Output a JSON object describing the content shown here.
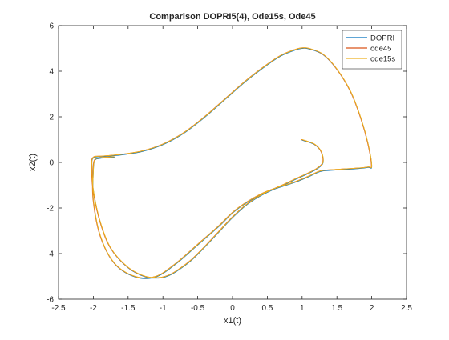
{
  "chart_data": {
    "type": "line",
    "title": "Comparison DOPRI5(4), Ode15s, Ode45",
    "xlabel": "x1(t)",
    "ylabel": "x2(t)",
    "xlim": [
      -2.5,
      2.5
    ],
    "ylim": [
      -6,
      6
    ],
    "xticks": [
      "-2.5",
      "-2",
      "-1.5",
      "-1",
      "-0.5",
      "0",
      "0.5",
      "1",
      "1.5",
      "2",
      "2.5"
    ],
    "yticks": [
      "-6",
      "-4",
      "-2",
      "0",
      "2",
      "4",
      "6"
    ],
    "grid": false,
    "legend_position": "top-right",
    "series": [
      {
        "name": "DOPRI",
        "color": "#0072BD"
      },
      {
        "name": "ode45",
        "color": "#D95319"
      },
      {
        "name": "ode15s",
        "color": "#EDB120"
      }
    ],
    "trajectory": {
      "x": [
        1.0,
        1.18,
        1.28,
        1.3,
        1.22,
        1.1,
        0.92,
        0.75,
        0.6,
        0.4,
        0.2,
        0.0,
        -0.2,
        -0.4,
        -0.6,
        -0.8,
        -0.92,
        -1.05,
        -1.25,
        -1.5,
        -1.75,
        -1.9,
        -2.0,
        -2.02,
        -2.0,
        -1.85,
        -1.6,
        -1.3,
        -1.0,
        -0.7,
        -0.4,
        -0.1,
        0.2,
        0.5,
        0.7,
        0.9,
        1.0,
        1.1,
        1.3,
        1.5,
        1.7,
        1.85,
        1.95,
        2.0,
        1.95,
        1.8,
        1.55,
        1.3,
        1.2,
        1.1,
        0.9,
        0.6,
        0.4,
        0.2,
        0.0,
        -0.2,
        -0.5,
        -0.8,
        -1.1,
        -1.4,
        -1.7,
        -1.9,
        -2.0,
        -2.0,
        -1.98,
        -1.9,
        -1.7
      ],
      "y": [
        1.0,
        0.8,
        0.45,
        0.0,
        -0.25,
        -0.45,
        -0.7,
        -0.95,
        -1.15,
        -1.45,
        -1.85,
        -2.4,
        -3.05,
        -3.7,
        -4.3,
        -4.75,
        -4.95,
        -5.05,
        -5.0,
        -4.6,
        -3.75,
        -2.6,
        -1.2,
        -0.2,
        0.22,
        0.28,
        0.35,
        0.5,
        0.8,
        1.3,
        2.0,
        2.8,
        3.6,
        4.3,
        4.7,
        4.95,
        5.02,
        5.0,
        4.75,
        4.1,
        3.1,
        1.9,
        0.8,
        -0.15,
        -0.2,
        -0.25,
        -0.3,
        -0.35,
        -0.45,
        -0.6,
        -0.85,
        -1.15,
        -1.4,
        -1.75,
        -2.2,
        -2.8,
        -3.6,
        -4.4,
        -5.0,
        -5.0,
        -4.4,
        -3.2,
        -1.6,
        -0.4,
        0.1,
        0.2,
        0.25
      ]
    }
  }
}
